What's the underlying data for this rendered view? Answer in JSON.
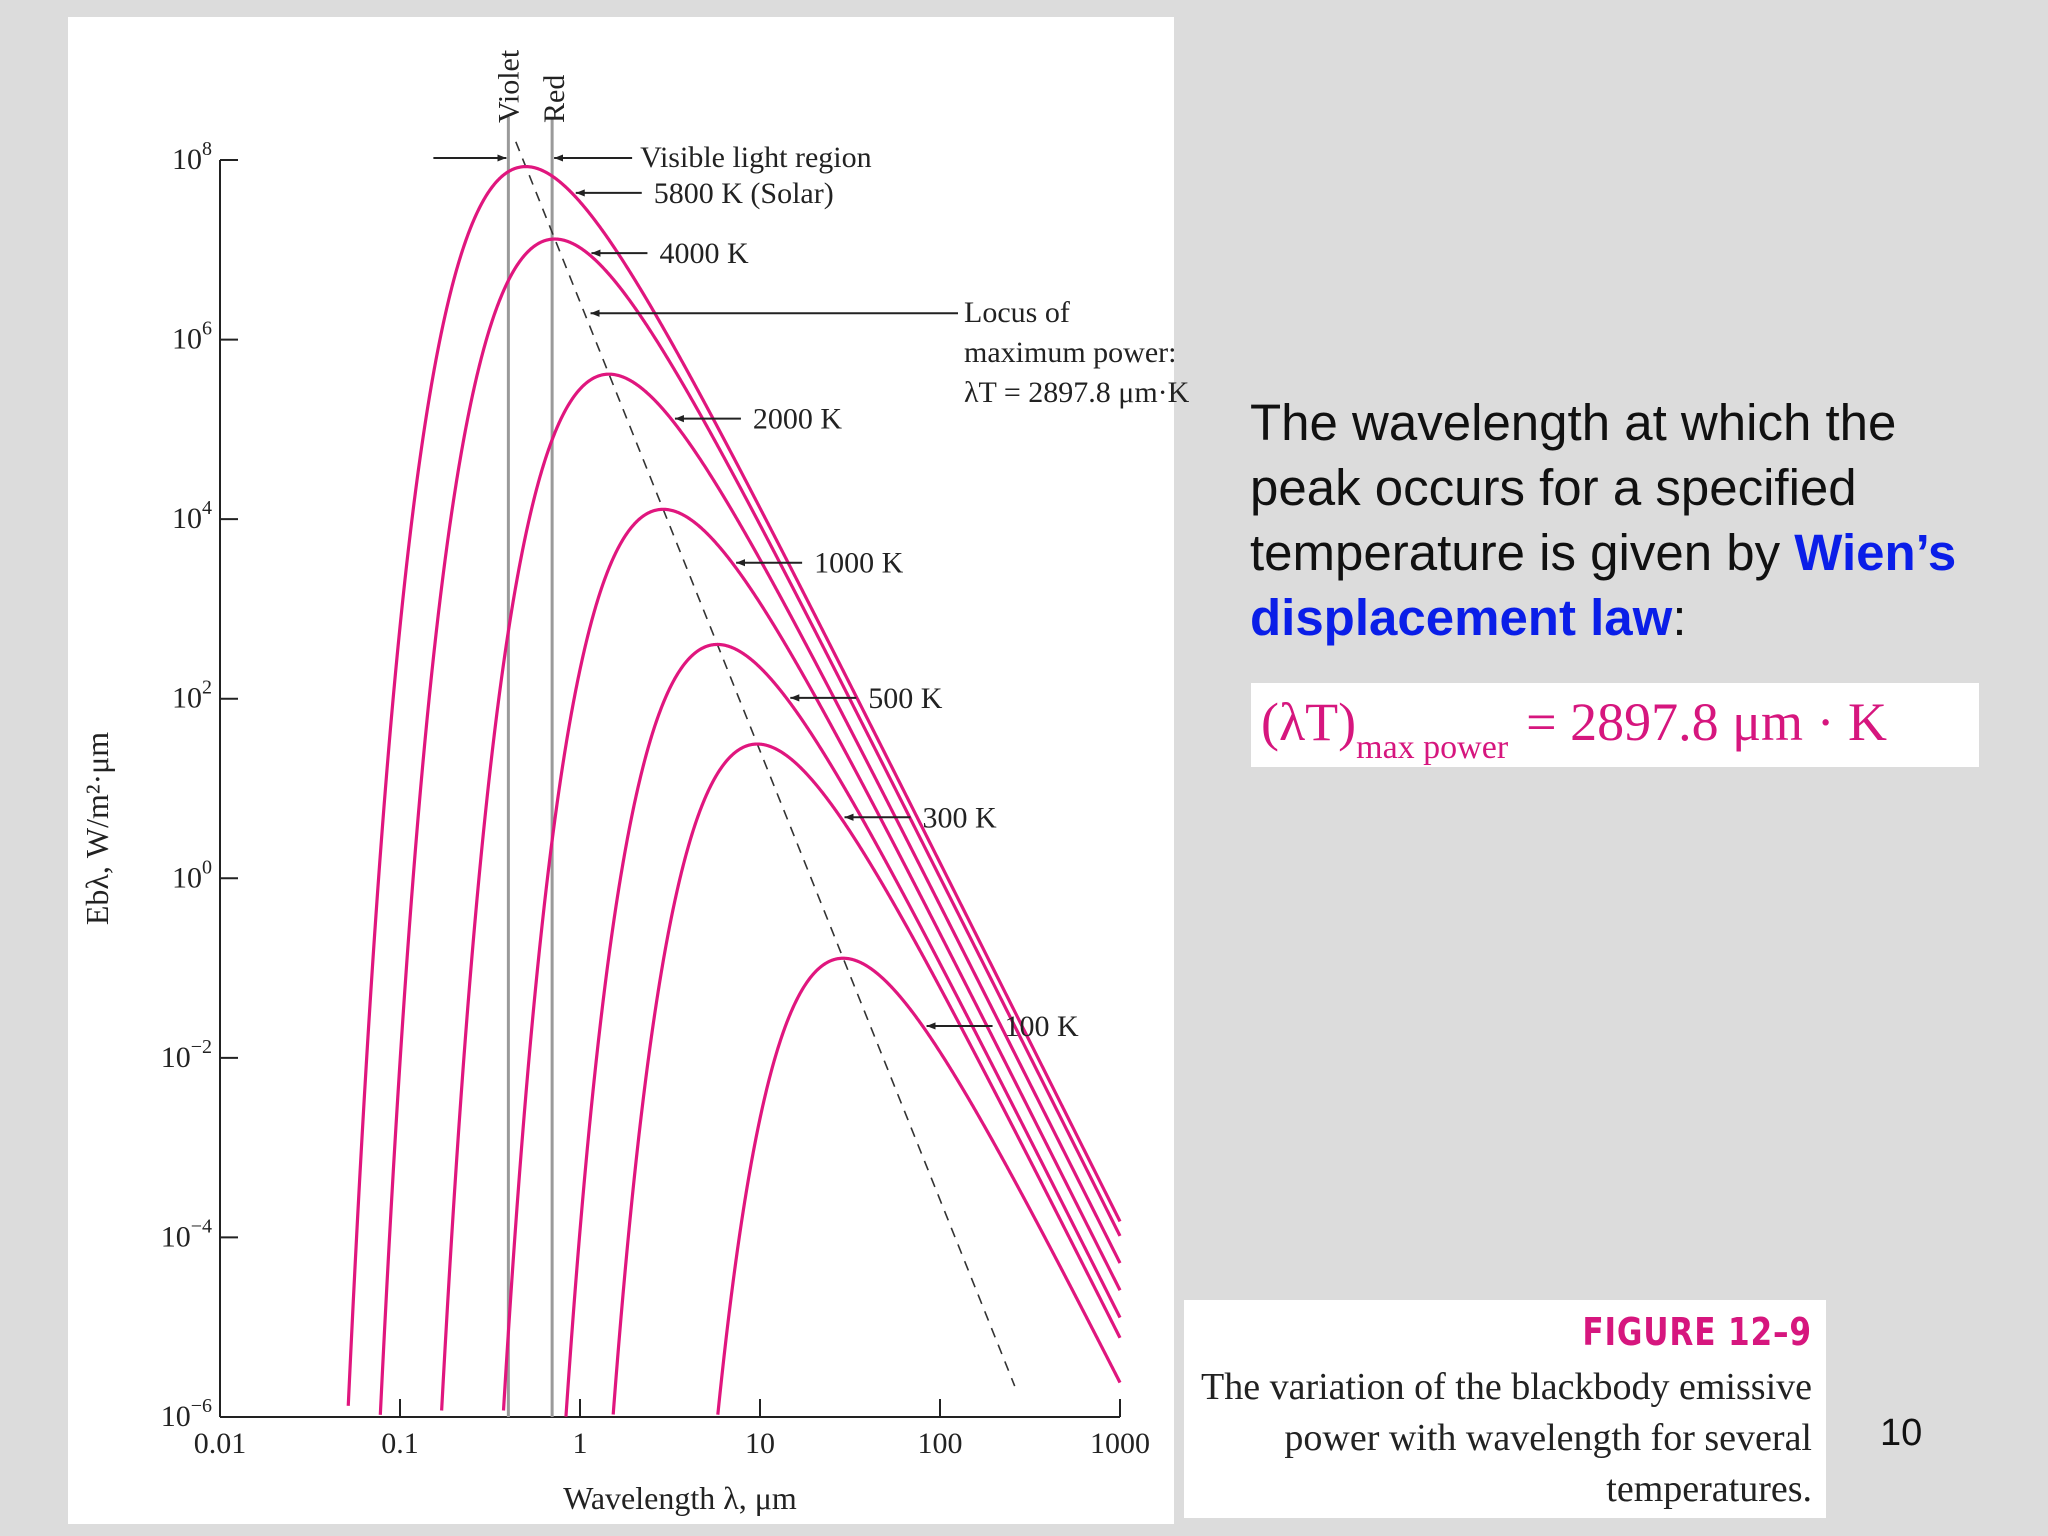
{
  "slide": {
    "description_before": "The wavelength at which the peak occurs for a specified temperature is given by ",
    "description_highlight": "Wien’s displacement law",
    "description_after": ":",
    "formula": {
      "lhs": "(λT)",
      "subscript": "max power",
      "rhs": "= 2897.8 μm · K"
    },
    "caption_title": "FIGURE 12–9",
    "caption_text": "The variation of the blackbody emissive power with wavelength for several temperatures.",
    "page_number": "10",
    "colors": {
      "curve": "#e0167e",
      "highlight": "#0a1ee8",
      "caption": "#d6167e"
    }
  },
  "chart_data": {
    "type": "line",
    "xscale": "log",
    "yscale": "log",
    "xlim": [
      0.01,
      1000
    ],
    "ylim": [
      1e-06,
      100000000.0
    ],
    "xlabel": "Wavelength λ, μm",
    "ylabel": "Ebλ, W/m²·μm",
    "xticks": [
      "0.01",
      "0.1",
      "1",
      "10",
      "100",
      "1000"
    ],
    "yticks": [
      {
        "base": "10",
        "exp": "8"
      },
      {
        "base": "10",
        "exp": "6"
      },
      {
        "base": "10",
        "exp": "4"
      },
      {
        "base": "10",
        "exp": "2"
      },
      {
        "base": "10",
        "exp": "0"
      },
      {
        "base": "10",
        "exp": "−2"
      },
      {
        "base": "10",
        "exp": "−4"
      },
      {
        "base": "10",
        "exp": "−6"
      }
    ],
    "series_temperatures_K": [
      5800,
      4000,
      2000,
      1000,
      500,
      300,
      100
    ],
    "series": [
      {
        "name": "5800 K (Solar)",
        "temperature": 5800
      },
      {
        "name": "4000 K",
        "temperature": 4000
      },
      {
        "name": "2000 K",
        "temperature": 2000
      },
      {
        "name": "1000 K",
        "temperature": 1000
      },
      {
        "name": "500 K",
        "temperature": 500
      },
      {
        "name": "300 K",
        "temperature": 300
      },
      {
        "name": "100 K",
        "temperature": 100
      }
    ],
    "visible_region": {
      "violet": 0.4,
      "red": 0.7,
      "violet_label": "Violet",
      "red_label": "Red",
      "label": "Visible light region"
    },
    "locus": {
      "label_line1": "Locus of",
      "label_line2": "maximum power:",
      "label_line3": "λT = 2897.8 μm·K",
      "constant": 2897.8
    },
    "annotations": [
      {
        "text": "5800 K (Solar)",
        "temperature": 5800,
        "lambda": 0.9
      },
      {
        "text": "4000 K",
        "temperature": 4000,
        "lambda": 1.1
      },
      {
        "text": "2000 K",
        "temperature": 2000,
        "lambda": 3.2
      },
      {
        "text": "1000 K",
        "temperature": 1000,
        "lambda": 7
      },
      {
        "text": "500 K",
        "temperature": 500,
        "lambda": 14
      },
      {
        "text": "300 K",
        "temperature": 300,
        "lambda": 28
      },
      {
        "text": "100 K",
        "temperature": 100,
        "lambda": 80
      }
    ]
  }
}
